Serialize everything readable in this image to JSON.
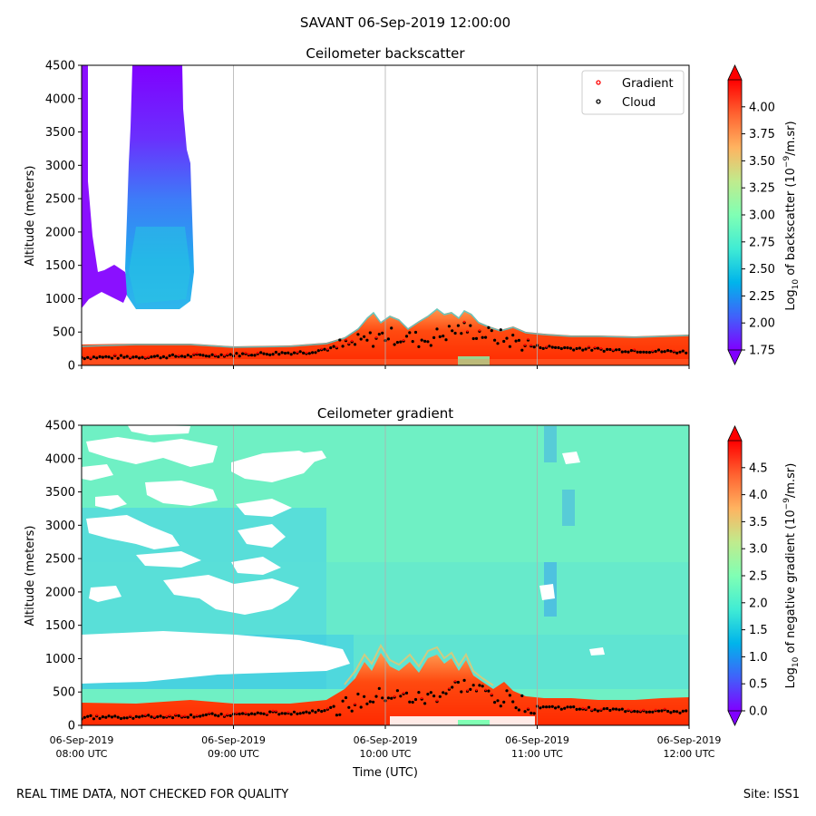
{
  "figure": {
    "suptitle": "SAVANT 06-Sep-2019 12:00:00",
    "footer_left": "REAL TIME DATA, NOT CHECKED FOR QUALITY",
    "footer_right": "Site: ISS1",
    "xlabel": "Time (UTC)",
    "x_ticks": [
      {
        "date": "06-Sep-2019",
        "time": "08:00 UTC"
      },
      {
        "date": "06-Sep-2019",
        "time": "09:00 UTC"
      },
      {
        "date": "06-Sep-2019",
        "time": "10:00 UTC"
      },
      {
        "date": "06-Sep-2019",
        "time": "11:00 UTC"
      },
      {
        "date": "06-Sep-2019",
        "time": "12:00 UTC"
      }
    ],
    "colormap": [
      "#8000ff",
      "#4062fa",
      "#00b4eb",
      "#40ecd4",
      "#80ffb4",
      "#c0eb8d",
      "#ffb360",
      "#ff6230",
      "#ff0000"
    ]
  },
  "chart_data": [
    {
      "type": "heatmap",
      "title": "Ceilometer backscatter",
      "ylabel": "Altitude (meters)",
      "x_range": [
        "08:00",
        "12:00"
      ],
      "ylim": [
        0,
        4500
      ],
      "y_ticks": [
        "0",
        "500",
        "1000",
        "1500",
        "2000",
        "2500",
        "3000",
        "3500",
        "4000",
        "4500"
      ],
      "grid": "vertical",
      "legend": {
        "placement": "top-right",
        "entries": [
          {
            "label": "Gradient",
            "color": "#ff0000"
          },
          {
            "label": "Cloud",
            "color": "#000000"
          }
        ]
      },
      "colorbar": {
        "label_prefix": "Log",
        "label_sub": "10",
        "label_mid": " of backscatter (10",
        "label_sup": "−9",
        "label_suffix": "/m.sr)",
        "range": [
          1.75,
          4.25
        ],
        "extend": "both",
        "ticks": [
          "1.75",
          "2.00",
          "2.25",
          "2.50",
          "2.75",
          "3.00",
          "3.25",
          "3.50",
          "3.75",
          "4.00"
        ]
      },
      "boundary_layer_height_m": [
        {
          "time": "08:00",
          "top": 330
        },
        {
          "time": "08:30",
          "top": 330
        },
        {
          "time": "09:00",
          "top": 320
        },
        {
          "time": "09:30",
          "top": 340
        },
        {
          "time": "09:45",
          "top": 450
        },
        {
          "time": "10:00",
          "top": 600
        },
        {
          "time": "10:15",
          "top": 550
        },
        {
          "time": "10:30",
          "top": 700
        },
        {
          "time": "10:45",
          "top": 600
        },
        {
          "time": "11:00",
          "top": 400
        },
        {
          "time": "11:30",
          "top": 360
        },
        {
          "time": "12:00",
          "top": 330
        }
      ],
      "cloud_base_m": [
        {
          "time": "08:00",
          "alt": 120
        },
        {
          "time": "08:30",
          "alt": 130
        },
        {
          "time": "09:00",
          "alt": 160
        },
        {
          "time": "09:30",
          "alt": 200
        },
        {
          "time": "09:45",
          "alt": 300
        },
        {
          "time": "10:00",
          "alt": 450
        },
        {
          "time": "10:15",
          "alt": 380
        },
        {
          "time": "10:30",
          "alt": 550
        },
        {
          "time": "10:45",
          "alt": 420
        },
        {
          "time": "11:00",
          "alt": 280
        },
        {
          "time": "11:30",
          "alt": 230
        },
        {
          "time": "12:00",
          "alt": 200
        }
      ]
    },
    {
      "type": "heatmap",
      "title": "Ceilometer gradient",
      "ylabel": "Altitude (meters)",
      "x_range": [
        "08:00",
        "12:00"
      ],
      "ylim": [
        0,
        4500
      ],
      "y_ticks": [
        "0",
        "500",
        "1000",
        "1500",
        "2000",
        "2500",
        "3000",
        "3500",
        "4000",
        "4500"
      ],
      "grid": "vertical",
      "colorbar": {
        "label_prefix": "Log",
        "label_sub": "10",
        "label_mid": " of negative gradient (10",
        "label_sup": "−9",
        "label_suffix": "/m.sr)",
        "range": [
          0.0,
          5.0
        ],
        "extend": "both",
        "ticks": [
          "0.0",
          "0.5",
          "1.0",
          "1.5",
          "2.0",
          "2.5",
          "3.0",
          "3.5",
          "4.0",
          "4.5"
        ]
      },
      "boundary_layer_height_m": [
        {
          "time": "08:00",
          "top": 280
        },
        {
          "time": "08:30",
          "top": 290
        },
        {
          "time": "09:00",
          "top": 300
        },
        {
          "time": "09:30",
          "top": 330
        },
        {
          "time": "09:45",
          "top": 500
        },
        {
          "time": "10:00",
          "top": 700
        },
        {
          "time": "10:15",
          "top": 650
        },
        {
          "time": "10:30",
          "top": 800
        },
        {
          "time": "10:45",
          "top": 600
        },
        {
          "time": "11:00",
          "top": 380
        },
        {
          "time": "11:30",
          "top": 320
        },
        {
          "time": "12:00",
          "top": 300
        }
      ],
      "cloud_base_m": [
        {
          "time": "08:00",
          "alt": 120
        },
        {
          "time": "08:30",
          "alt": 130
        },
        {
          "time": "09:00",
          "alt": 160
        },
        {
          "time": "09:30",
          "alt": 200
        },
        {
          "time": "09:45",
          "alt": 300
        },
        {
          "time": "10:00",
          "alt": 450
        },
        {
          "time": "10:15",
          "alt": 380
        },
        {
          "time": "10:30",
          "alt": 600
        },
        {
          "time": "10:45",
          "alt": 420
        },
        {
          "time": "11:00",
          "alt": 280
        },
        {
          "time": "11:30",
          "alt": 230
        },
        {
          "time": "12:00",
          "alt": 200
        }
      ]
    }
  ]
}
